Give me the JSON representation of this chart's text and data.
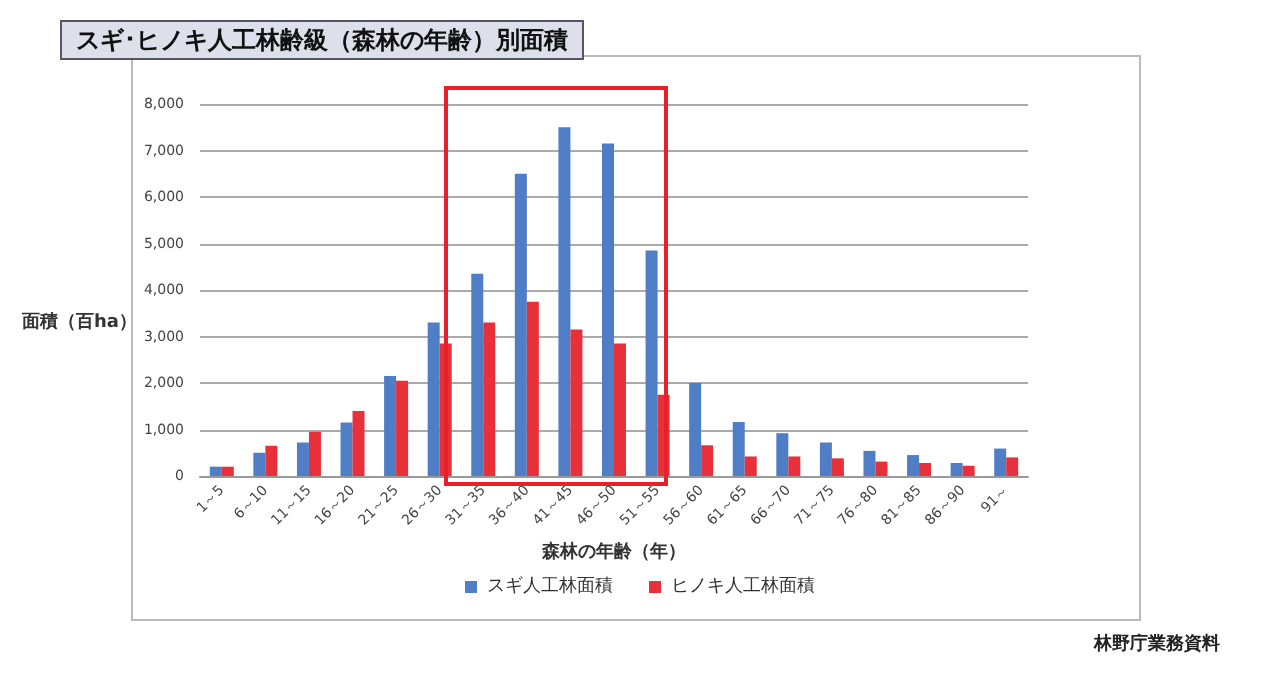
{
  "chart_data": {
    "type": "bar",
    "title": "スギ･ヒノキ人工林齢級（森林の年齢）別面積",
    "xlabel": "森林の年齢（年）",
    "ylabel": "面積（百ha）",
    "categories": [
      "1～5",
      "6～10",
      "11～15",
      "16～20",
      "21～25",
      "26～30",
      "31～35",
      "36～40",
      "41～45",
      "46～50",
      "51～55",
      "56～60",
      "61～65",
      "66～70",
      "71～75",
      "76～80",
      "81～85",
      "86～90",
      "91～"
    ],
    "series": [
      {
        "name": "スギ人工林面積",
        "color": "#4f7ec6",
        "values": [
          200,
          500,
          720,
          1150,
          2150,
          3300,
          4350,
          6500,
          7500,
          7150,
          4850,
          2000,
          1160,
          920,
          720,
          540,
          450,
          280,
          590
        ]
      },
      {
        "name": "ヒノキ人工林面積",
        "color": "#e8303a",
        "values": [
          200,
          650,
          950,
          1400,
          2050,
          2850,
          3300,
          3750,
          3150,
          2850,
          1750,
          660,
          420,
          420,
          380,
          310,
          280,
          220,
          400
        ]
      }
    ],
    "ylim": [
      0,
      8000
    ],
    "yticks": [
      0,
      {
        "value": 1000,
        "label": "1,000"
      },
      {
        "value": 2000,
        "label": "2,000"
      },
      {
        "value": 3000,
        "label": "3,000"
      },
      {
        "value": 4000,
        "label": "4,000"
      },
      {
        "value": 5000,
        "label": "5,000"
      },
      {
        "value": 6000,
        "label": "6,000"
      },
      {
        "value": 7000,
        "label": "7,000"
      },
      {
        "value": 8000,
        "label": "8,000"
      }
    ],
    "grid": "y",
    "legend": "bottom",
    "annotations": [
      "林野庁業務資料"
    ]
  }
}
